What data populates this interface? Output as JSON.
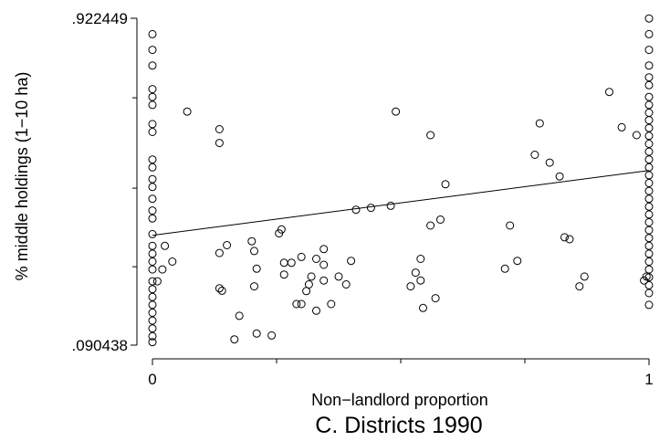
{
  "chart_data": {
    "type": "scatter",
    "title": "C. Districts 1990",
    "xlabel": "Non−landlord proportion",
    "ylabel": "% middle holdings (1−10 ha)",
    "xlim": [
      0,
      1
    ],
    "ylim": [
      0.090438,
      0.922449
    ],
    "x_tick_labels": [
      {
        "value": 0,
        "label": "0"
      },
      {
        "value": 1,
        "label": "1"
      }
    ],
    "x_minor_ticks": [
      0.25,
      0.5,
      0.75
    ],
    "y_tick_labels": [
      {
        "value": 0.090438,
        "label": ".090438"
      },
      {
        "value": 0.922449,
        "label": ".922449"
      }
    ],
    "y_minor_ticks": [
      0.29,
      0.49,
      0.72
    ],
    "grid": false,
    "fit_line": {
      "x": [
        0,
        1
      ],
      "y": [
        0.37,
        0.535
      ]
    },
    "points": [
      {
        "x": 0,
        "y": 0.882
      },
      {
        "x": 0,
        "y": 0.842
      },
      {
        "x": 0,
        "y": 0.802
      },
      {
        "x": 0,
        "y": 0.742
      },
      {
        "x": 0,
        "y": 0.722
      },
      {
        "x": 0,
        "y": 0.702
      },
      {
        "x": 0,
        "y": 0.653
      },
      {
        "x": 0,
        "y": 0.633
      },
      {
        "x": 0,
        "y": 0.563
      },
      {
        "x": 0,
        "y": 0.543
      },
      {
        "x": 0,
        "y": 0.513
      },
      {
        "x": 0,
        "y": 0.493
      },
      {
        "x": 0,
        "y": 0.463
      },
      {
        "x": 0,
        "y": 0.433
      },
      {
        "x": 0,
        "y": 0.413
      },
      {
        "x": 0,
        "y": 0.373
      },
      {
        "x": 0,
        "y": 0.343
      },
      {
        "x": 0,
        "y": 0.323
      },
      {
        "x": 0,
        "y": 0.303
      },
      {
        "x": 0,
        "y": 0.283
      },
      {
        "x": 0,
        "y": 0.253
      },
      {
        "x": 0,
        "y": 0.233
      },
      {
        "x": 0,
        "y": 0.213
      },
      {
        "x": 0,
        "y": 0.193
      },
      {
        "x": 0,
        "y": 0.173
      },
      {
        "x": 0,
        "y": 0.153
      },
      {
        "x": 0,
        "y": 0.133
      },
      {
        "x": 0,
        "y": 0.113
      },
      {
        "x": 0,
        "y": 0.098
      },
      {
        "x": 0.01,
        "y": 0.253
      },
      {
        "x": 0.02,
        "y": 0.283
      },
      {
        "x": 0.025,
        "y": 0.343
      },
      {
        "x": 0.04,
        "y": 0.303
      },
      {
        "x": 0.07,
        "y": 0.685
      },
      {
        "x": 0.135,
        "y": 0.64
      },
      {
        "x": 0.135,
        "y": 0.605
      },
      {
        "x": 0.135,
        "y": 0.325
      },
      {
        "x": 0.135,
        "y": 0.235
      },
      {
        "x": 0.14,
        "y": 0.229
      },
      {
        "x": 0.15,
        "y": 0.345
      },
      {
        "x": 0.165,
        "y": 0.105
      },
      {
        "x": 0.175,
        "y": 0.165
      },
      {
        "x": 0.2,
        "y": 0.355
      },
      {
        "x": 0.205,
        "y": 0.24
      },
      {
        "x": 0.205,
        "y": 0.33
      },
      {
        "x": 0.21,
        "y": 0.285
      },
      {
        "x": 0.21,
        "y": 0.12
      },
      {
        "x": 0.24,
        "y": 0.115
      },
      {
        "x": 0.255,
        "y": 0.375
      },
      {
        "x": 0.26,
        "y": 0.385
      },
      {
        "x": 0.265,
        "y": 0.27
      },
      {
        "x": 0.265,
        "y": 0.3
      },
      {
        "x": 0.28,
        "y": 0.3
      },
      {
        "x": 0.29,
        "y": 0.195
      },
      {
        "x": 0.3,
        "y": 0.315
      },
      {
        "x": 0.3,
        "y": 0.195
      },
      {
        "x": 0.31,
        "y": 0.228
      },
      {
        "x": 0.315,
        "y": 0.245
      },
      {
        "x": 0.32,
        "y": 0.265
      },
      {
        "x": 0.33,
        "y": 0.178
      },
      {
        "x": 0.33,
        "y": 0.31
      },
      {
        "x": 0.345,
        "y": 0.295
      },
      {
        "x": 0.345,
        "y": 0.335
      },
      {
        "x": 0.345,
        "y": 0.255
      },
      {
        "x": 0.36,
        "y": 0.195
      },
      {
        "x": 0.375,
        "y": 0.265
      },
      {
        "x": 0.39,
        "y": 0.245
      },
      {
        "x": 0.4,
        "y": 0.305
      },
      {
        "x": 0.41,
        "y": 0.435
      },
      {
        "x": 0.44,
        "y": 0.44
      },
      {
        "x": 0.48,
        "y": 0.445
      },
      {
        "x": 0.49,
        "y": 0.685
      },
      {
        "x": 0.52,
        "y": 0.24
      },
      {
        "x": 0.53,
        "y": 0.275
      },
      {
        "x": 0.54,
        "y": 0.31
      },
      {
        "x": 0.54,
        "y": 0.255
      },
      {
        "x": 0.545,
        "y": 0.185
      },
      {
        "x": 0.56,
        "y": 0.395
      },
      {
        "x": 0.56,
        "y": 0.625
      },
      {
        "x": 0.57,
        "y": 0.21
      },
      {
        "x": 0.58,
        "y": 0.41
      },
      {
        "x": 0.59,
        "y": 0.5
      },
      {
        "x": 0.71,
        "y": 0.285
      },
      {
        "x": 0.72,
        "y": 0.395
      },
      {
        "x": 0.735,
        "y": 0.305
      },
      {
        "x": 0.77,
        "y": 0.575
      },
      {
        "x": 0.78,
        "y": 0.655
      },
      {
        "x": 0.8,
        "y": 0.555
      },
      {
        "x": 0.82,
        "y": 0.52
      },
      {
        "x": 0.83,
        "y": 0.365
      },
      {
        "x": 0.84,
        "y": 0.36
      },
      {
        "x": 0.86,
        "y": 0.24
      },
      {
        "x": 0.87,
        "y": 0.265
      },
      {
        "x": 0.92,
        "y": 0.735
      },
      {
        "x": 0.945,
        "y": 0.645
      },
      {
        "x": 0.975,
        "y": 0.625
      },
      {
        "x": 1,
        "y": 0.922
      },
      {
        "x": 1,
        "y": 0.882
      },
      {
        "x": 1,
        "y": 0.842
      },
      {
        "x": 1,
        "y": 0.802
      },
      {
        "x": 1,
        "y": 0.772
      },
      {
        "x": 1,
        "y": 0.752
      },
      {
        "x": 1,
        "y": 0.722
      },
      {
        "x": 1,
        "y": 0.702
      },
      {
        "x": 1,
        "y": 0.682
      },
      {
        "x": 1,
        "y": 0.663
      },
      {
        "x": 1,
        "y": 0.643
      },
      {
        "x": 1,
        "y": 0.623
      },
      {
        "x": 1,
        "y": 0.603
      },
      {
        "x": 1,
        "y": 0.583
      },
      {
        "x": 1,
        "y": 0.563
      },
      {
        "x": 1,
        "y": 0.543
      },
      {
        "x": 1,
        "y": 0.523
      },
      {
        "x": 1,
        "y": 0.503
      },
      {
        "x": 1,
        "y": 0.483
      },
      {
        "x": 1,
        "y": 0.463
      },
      {
        "x": 1,
        "y": 0.443
      },
      {
        "x": 1,
        "y": 0.423
      },
      {
        "x": 1,
        "y": 0.403
      },
      {
        "x": 1,
        "y": 0.383
      },
      {
        "x": 1,
        "y": 0.363
      },
      {
        "x": 1,
        "y": 0.343
      },
      {
        "x": 1,
        "y": 0.323
      },
      {
        "x": 1,
        "y": 0.303
      },
      {
        "x": 1,
        "y": 0.283
      },
      {
        "x": 1,
        "y": 0.263
      },
      {
        "x": 1,
        "y": 0.243
      },
      {
        "x": 1,
        "y": 0.223
      },
      {
        "x": 1,
        "y": 0.193
      },
      {
        "x": 0.99,
        "y": 0.255
      },
      {
        "x": 0.995,
        "y": 0.265
      }
    ]
  }
}
